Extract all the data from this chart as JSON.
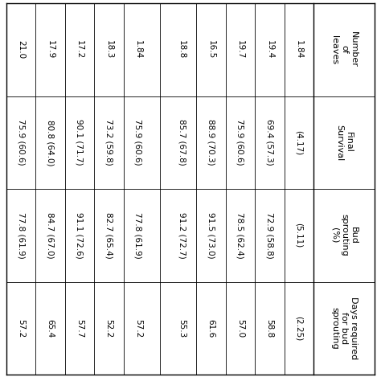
{
  "columns_rotated": [
    "Number\nof\nleaves",
    "Final\nSurvival",
    "Bud\nsprouting\n(%)",
    "Days required\nfor bud\nsprouting"
  ],
  "group1_rows": [
    [
      "21.0",
      "75.9 (60.6)",
      "77.8 (61.9)",
      "57.2"
    ],
    [
      "17.9",
      "80.8 (64.0)",
      "84.7 (67.0)",
      "65.4"
    ],
    [
      "17.2",
      "90.1 (71.7)",
      "91.1 (72.6)",
      "57.7"
    ],
    [
      "18.3",
      "73.2 (59.8)",
      "82.7 (65.4)",
      "52.2"
    ],
    [
      "1.84",
      "75.9 (60.6)",
      "77.8 (61.9)",
      "57.2"
    ]
  ],
  "group2_rows": [
    [
      "18.8",
      "85.7 (67.8)",
      "91.2 (72.7)",
      "55.3"
    ],
    [
      "16.5",
      "88.9 (70.3)",
      "91.5 (73.0)",
      "61.6"
    ],
    [
      "19.7",
      "75.9 (60.6)",
      "78.5 (62.4)",
      "57.0"
    ],
    [
      "19.4",
      "69.4 (57.3)",
      "72.9 (58.8)",
      "58.8"
    ],
    [
      "1.84",
      "(4.17)",
      "(5.11)",
      "(2.25)"
    ]
  ],
  "bg_color": "#ffffff",
  "font_size": 7.5,
  "header_font_size": 8.0
}
